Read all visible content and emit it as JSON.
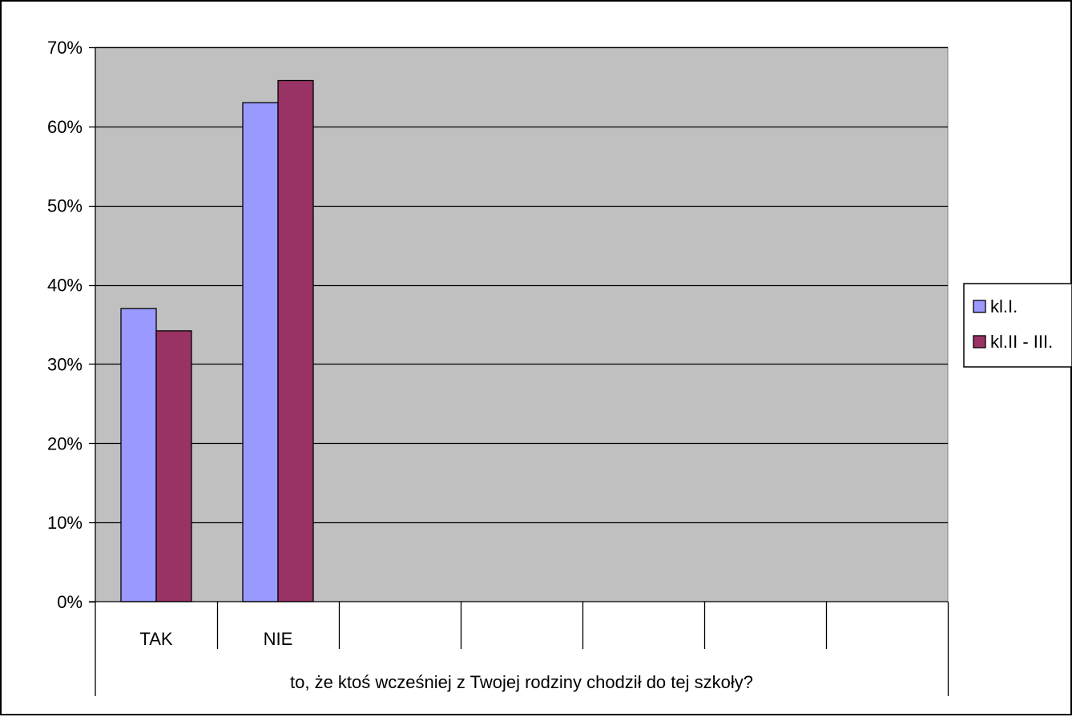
{
  "chart_data": {
    "type": "bar",
    "categories": [
      "TAK",
      "NIE",
      "",
      "",
      "",
      "",
      ""
    ],
    "group_label": "to, że ktoś wcześniej z Twojej rodziny chodził do tej szkoły?",
    "series": [
      {
        "name": "kl.I.",
        "color": "#9999ff",
        "values": [
          37,
          63,
          null,
          null,
          null,
          null,
          null
        ]
      },
      {
        "name": "kl.II - III.",
        "color": "#993366",
        "values": [
          34.2,
          65.8,
          null,
          null,
          null,
          null,
          null
        ]
      }
    ],
    "ylim": [
      0,
      70
    ],
    "yticks": [
      0,
      10,
      20,
      30,
      40,
      50,
      60,
      70
    ],
    "ytick_labels": [
      "0%",
      "10%",
      "20%",
      "30%",
      "40%",
      "50%",
      "60%",
      "70%"
    ],
    "plot_background": "#c0c0c0",
    "grid": true,
    "legend_position": "right"
  }
}
